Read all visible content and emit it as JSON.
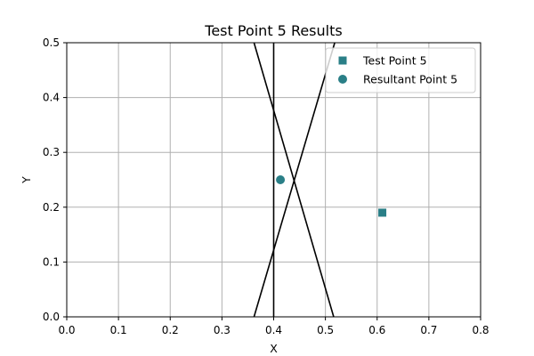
{
  "chart_data": {
    "type": "scatter",
    "title": "Test Point 5 Results",
    "xlabel": "X",
    "ylabel": "Y",
    "xlim": [
      0.0,
      0.8
    ],
    "ylim": [
      0.0,
      0.5
    ],
    "xticks": [
      "0.0",
      "0.1",
      "0.2",
      "0.3",
      "0.4",
      "0.5",
      "0.6",
      "0.7",
      "0.8"
    ],
    "yticks": [
      "0.0",
      "0.1",
      "0.2",
      "0.3",
      "0.4",
      "0.5"
    ],
    "grid": true,
    "legend_position": "upper right",
    "lines": [
      {
        "x": [
          0.4,
          0.4
        ],
        "y": [
          0.0,
          0.5
        ],
        "color": "#000000"
      },
      {
        "x": [
          0.362,
          0.518
        ],
        "y": [
          0.0,
          0.5
        ],
        "color": "#000000"
      },
      {
        "x": [
          0.362,
          0.516
        ],
        "y": [
          0.5,
          0.0
        ],
        "color": "#000000"
      }
    ],
    "series": [
      {
        "name": "Test Point 5",
        "marker": "square",
        "color": "#2a7f87",
        "points": [
          [
            0.61,
            0.19
          ]
        ]
      },
      {
        "name": "Resultant Point 5",
        "marker": "circle",
        "color": "#2a7f87",
        "points": [
          [
            0.413,
            0.25
          ]
        ]
      }
    ]
  }
}
